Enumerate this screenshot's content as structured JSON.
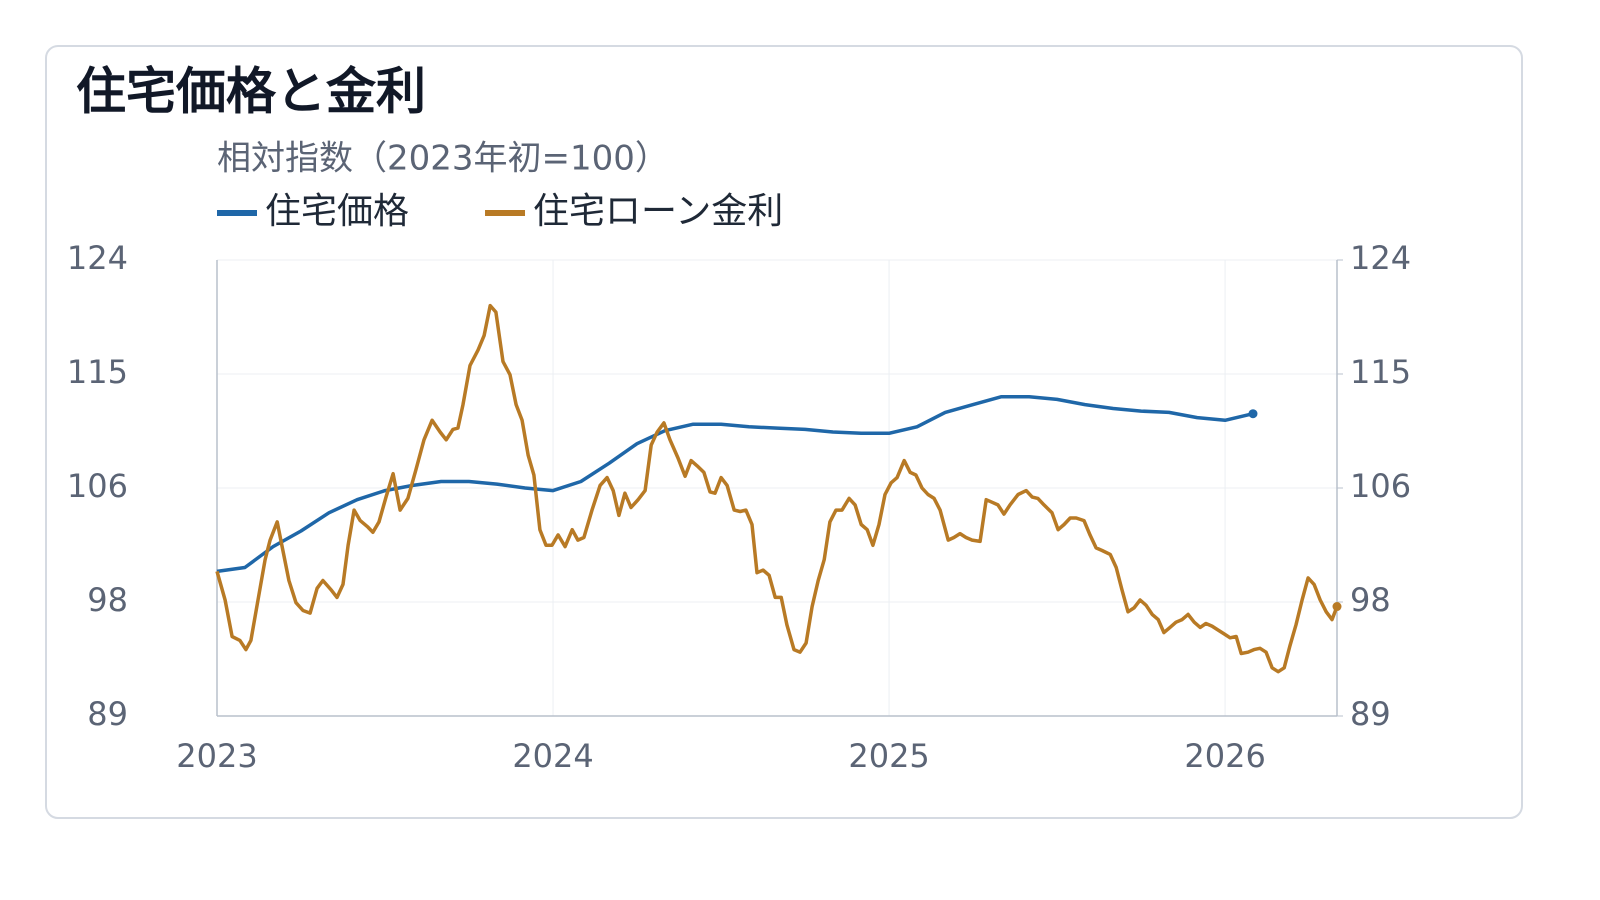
{
  "chart_data": {
    "type": "line",
    "title": "住宅価格と金利",
    "subtitle": "相対指数（2023年初=100）",
    "xlim": [
      2023,
      2026.333
    ],
    "xticks": [
      2023,
      2024,
      2025,
      2026
    ],
    "ylim": [
      89,
      124
    ],
    "yticks": [
      89,
      {
        "value": 97.75,
        "label": "98"
      },
      {
        "value": 106.5,
        "label": "106"
      },
      {
        "value": 115.25,
        "label": "115"
      },
      124
    ],
    "y2lim": [
      89,
      124
    ],
    "y2ticks": [
      89,
      {
        "value": 97.75,
        "label": "98"
      },
      {
        "value": 106.5,
        "label": "106"
      },
      {
        "value": 115.25,
        "label": "115"
      },
      124
    ],
    "grid": true,
    "series": [
      {
        "name": "住宅価格",
        "color": "#1f67a8",
        "x": [
          2023,
          2023.083,
          2023.167,
          2023.25,
          2023.333,
          2023.417,
          2023.5,
          2023.583,
          2023.667,
          2023.75,
          2023.833,
          2023.917,
          2024,
          2024.083,
          2024.167,
          2024.25,
          2024.333,
          2024.417,
          2024.5,
          2024.583,
          2024.667,
          2024.75,
          2024.833,
          2024.917,
          2025,
          2025.083,
          2025.167,
          2025.25,
          2025.333,
          2025.417,
          2025.5,
          2025.583,
          2025.667,
          2025.75,
          2025.833,
          2025.917,
          2026,
          2026.083
        ],
        "values": [
          100.1,
          100.4,
          102.0,
          103.2,
          104.6,
          105.6,
          106.3,
          106.7,
          107.0,
          107.0,
          106.8,
          106.5,
          106.3,
          107.0,
          108.4,
          109.9,
          110.9,
          111.4,
          111.4,
          111.2,
          111.1,
          111.0,
          110.8,
          110.7,
          110.7,
          111.2,
          112.3,
          112.9,
          113.5,
          113.5,
          113.3,
          112.9,
          112.6,
          112.4,
          112.3,
          111.9,
          111.7,
          112.2
        ]
      },
      {
        "name": "住宅ローン金利",
        "color": "#b87a25",
        "axis": "y2",
        "x": [
          2023,
          2023.024,
          2023.045,
          2023.068,
          2023.086,
          2023.101,
          2023.122,
          2023.143,
          2023.158,
          2023.179,
          2023.196,
          2023.214,
          2023.235,
          2023.256,
          2023.277,
          2023.298,
          2023.315,
          2023.339,
          2023.357,
          2023.375,
          2023.39,
          2023.408,
          2023.426,
          2023.449,
          2023.464,
          2023.482,
          2023.503,
          2023.524,
          2023.545,
          2023.568,
          2023.592,
          2023.616,
          2023.64,
          2023.664,
          2023.682,
          2023.702,
          2023.717,
          2023.732,
          2023.753,
          2023.777,
          2023.795,
          2023.813,
          2023.83,
          2023.851,
          2023.872,
          2023.89,
          2023.908,
          2023.926,
          2023.943,
          2023.961,
          2023.979,
          2023.997,
          2024.015,
          2024.036,
          2024.057,
          2024.074,
          2024.092,
          2024.116,
          2024.14,
          2024.161,
          2024.179,
          2024.196,
          2024.214,
          2024.232,
          2024.253,
          2024.274,
          2024.292,
          2024.31,
          2024.33,
          2024.348,
          2024.372,
          2024.393,
          2024.411,
          2024.429,
          2024.449,
          2024.467,
          2024.482,
          2024.5,
          2024.518,
          2024.539,
          2024.557,
          2024.574,
          2024.592,
          2024.607,
          2024.625,
          2024.643,
          2024.661,
          2024.679,
          2024.696,
          2024.717,
          2024.735,
          2024.753,
          2024.771,
          2024.789,
          2024.807,
          2024.824,
          2024.842,
          2024.86,
          2024.881,
          2024.899,
          2024.917,
          2024.935,
          2024.952,
          2024.97,
          2024.988,
          2025.006,
          2025.024,
          2025.045,
          2025.063,
          2025.08,
          2025.098,
          2025.116,
          2025.134,
          2025.152,
          2025.176,
          2025.193,
          2025.211,
          2025.229,
          2025.247,
          2025.271,
          2025.289,
          2025.307,
          2025.324,
          2025.342,
          2025.36,
          2025.384,
          2025.408,
          2025.426,
          2025.443,
          2025.461,
          2025.485,
          2025.503,
          2025.521,
          2025.539,
          2025.557,
          2025.58,
          2025.598,
          2025.616,
          2025.634,
          2025.658,
          2025.676,
          2025.693,
          2025.711,
          2025.729,
          2025.747,
          2025.765,
          2025.783,
          2025.801,
          2025.818,
          2025.836,
          2025.854,
          2025.872,
          2025.89,
          2025.908,
          2025.926,
          2025.943,
          2025.961,
          2025.979,
          2025.997,
          2026.015,
          2026.033,
          2026.048,
          2026.068,
          2026.086,
          2026.104,
          2026.122,
          2026.14,
          2026.158,
          2026.176,
          2026.193,
          2026.211,
          2026.229,
          2026.247,
          2026.265,
          2026.283,
          2026.301,
          2026.318,
          2026.333
        ],
        "values": [
          100.1,
          97.9,
          95.1,
          94.8,
          94.1,
          94.8,
          97.9,
          101.0,
          102.5,
          103.9,
          101.7,
          99.4,
          97.7,
          97.1,
          96.9,
          98.8,
          99.4,
          98.7,
          98.1,
          99.1,
          102.1,
          104.8,
          104.0,
          103.5,
          103.1,
          103.9,
          105.8,
          107.6,
          104.8,
          105.7,
          107.9,
          110.2,
          111.7,
          110.8,
          110.2,
          111.0,
          111.1,
          112.9,
          115.9,
          117.1,
          118.2,
          120.5,
          120.0,
          116.2,
          115.2,
          112.9,
          111.7,
          109.0,
          107.5,
          103.3,
          102.1,
          102.1,
          102.9,
          102.0,
          103.3,
          102.5,
          102.7,
          104.8,
          106.7,
          107.3,
          106.3,
          104.4,
          106.1,
          105.0,
          105.6,
          106.3,
          109.8,
          110.8,
          111.5,
          110.2,
          108.8,
          107.4,
          108.6,
          108.2,
          107.7,
          106.2,
          106.1,
          107.3,
          106.7,
          104.8,
          104.7,
          104.8,
          103.7,
          100.0,
          100.2,
          99.8,
          98.1,
          98.1,
          96.0,
          94.1,
          93.9,
          94.6,
          97.4,
          99.4,
          101.0,
          103.9,
          104.8,
          104.8,
          105.7,
          105.2,
          103.7,
          103.3,
          102.1,
          103.7,
          106.0,
          106.9,
          107.3,
          108.6,
          107.7,
          107.5,
          106.5,
          106.0,
          105.7,
          104.8,
          102.5,
          102.7,
          103.0,
          102.7,
          102.5,
          102.4,
          105.6,
          105.4,
          105.2,
          104.5,
          105.2,
          106.0,
          106.3,
          105.8,
          105.7,
          105.2,
          104.6,
          103.3,
          103.7,
          104.2,
          104.2,
          104.0,
          102.9,
          101.9,
          101.7,
          101.4,
          100.4,
          98.7,
          97.0,
          97.3,
          97.9,
          97.5,
          96.8,
          96.4,
          95.4,
          95.8,
          96.2,
          96.4,
          96.8,
          96.2,
          95.8,
          96.1,
          95.9,
          95.6,
          95.3,
          95.0,
          95.1,
          93.8,
          93.9,
          94.1,
          94.2,
          93.9,
          92.7,
          92.4,
          92.7,
          94.4,
          96.0,
          97.9,
          99.6,
          99.1,
          97.9,
          97.0,
          96.4,
          97.4
        ]
      }
    ]
  }
}
